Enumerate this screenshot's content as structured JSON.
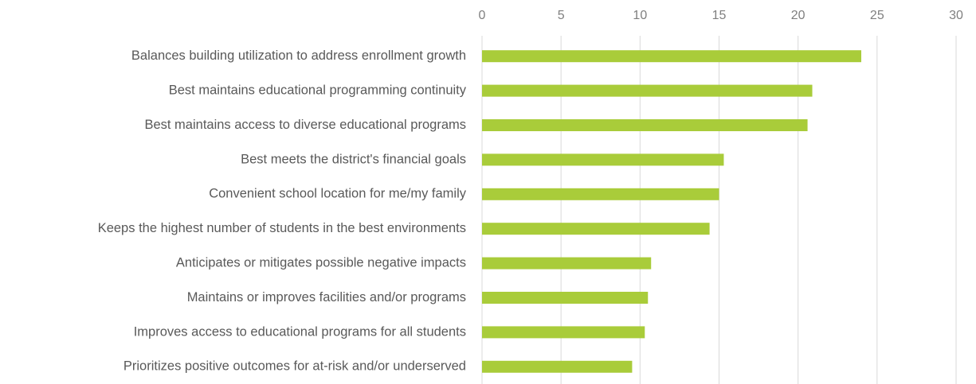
{
  "chart_data": {
    "type": "bar",
    "orientation": "horizontal",
    "categories": [
      "Balances building utilization to address enrollment growth",
      "Best maintains educational programming continuity",
      "Best maintains access to diverse educational programs",
      "Best meets the district's financial goals",
      "Convenient school location for me/my family",
      "Keeps the highest number of students in the best environments",
      "Anticipates or mitigates possible negative impacts",
      "Maintains or improves facilities and/or programs",
      "Improves access to educational programs for all students",
      "Prioritizes positive outcomes for at-risk and/or underserved"
    ],
    "values": [
      24,
      20.9,
      20.6,
      15.3,
      15.0,
      14.4,
      10.7,
      10.5,
      10.3,
      9.5
    ],
    "color": "#a9cc3a",
    "xlim": [
      0,
      30
    ],
    "xticks": [
      0,
      5,
      10,
      15,
      20,
      25,
      30
    ],
    "grid": true
  }
}
